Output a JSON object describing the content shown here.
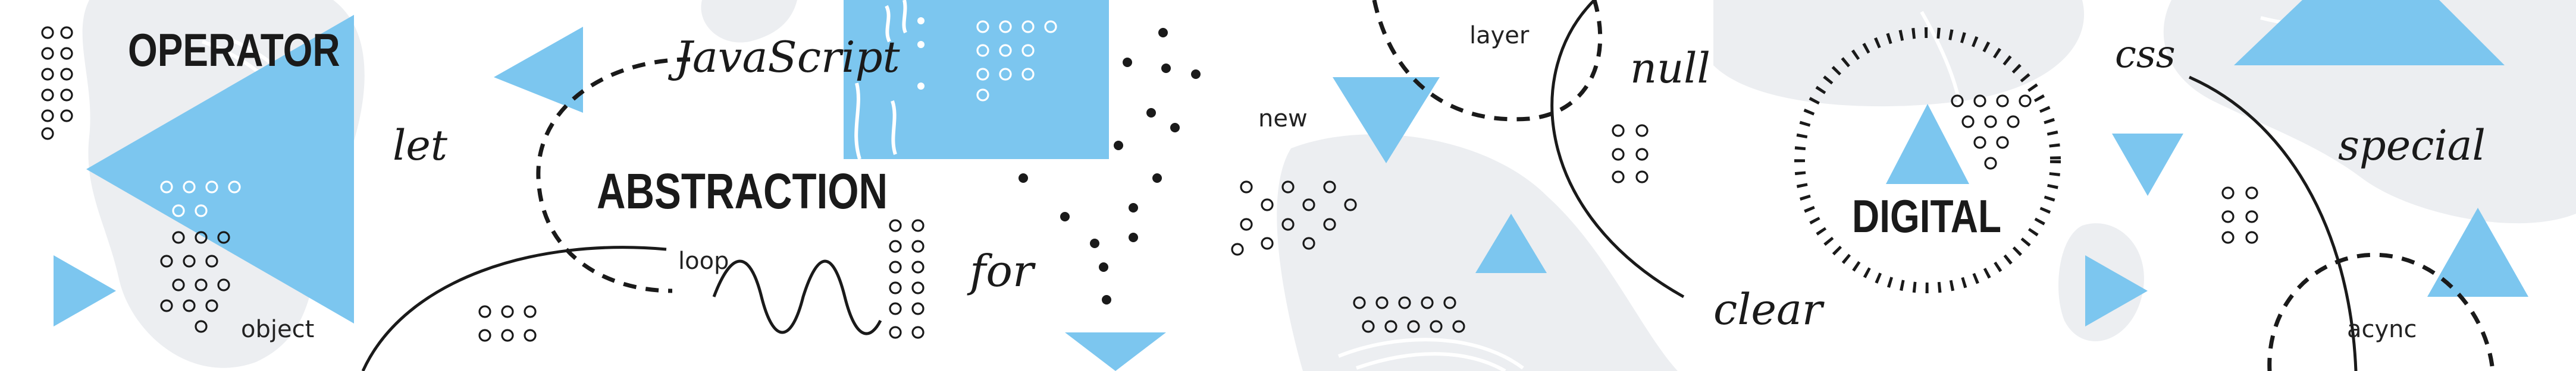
{
  "words": {
    "operator": "OPERATOR",
    "let": "let",
    "object": "object",
    "javascript": "JavaScript",
    "abstraction": "ABSTRACTION",
    "loop": "loop",
    "for": "for",
    "new": "new",
    "layer": "layer",
    "null": "null",
    "clear": "clear",
    "digital": "DIGITAL",
    "css": "css",
    "special": "special",
    "acync": "acync"
  },
  "colors": {
    "accent": "#7cc6ef",
    "ink": "#1a1a1a",
    "blob": "#eceef1",
    "background": "#ffffff"
  }
}
